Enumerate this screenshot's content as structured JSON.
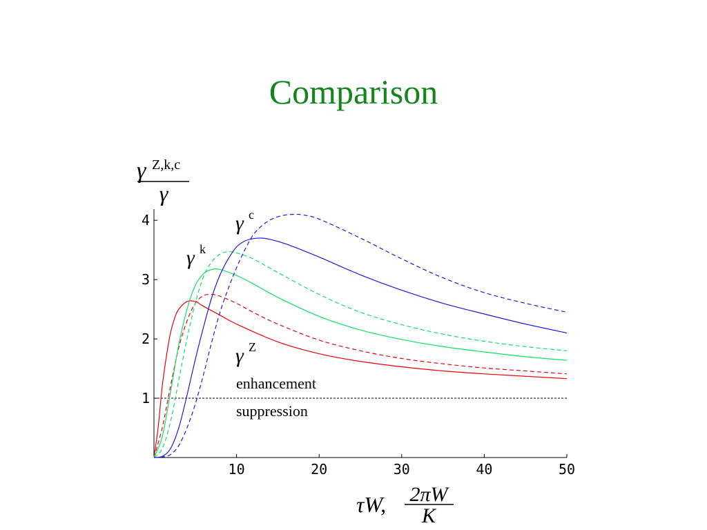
{
  "slide": {
    "title": "Comparison",
    "title_color": "#12851d"
  },
  "labels": {
    "y_gamma": "γ",
    "y_sup": "Z,k,c",
    "y_den": "γ",
    "x_prefix": "τW,",
    "x_num": "2πW",
    "x_den": "K",
    "gamma_c_base": "γ",
    "gamma_c_sup": "c",
    "gamma_k_base": "γ",
    "gamma_k_sup": "k",
    "gamma_z_base": "γ",
    "gamma_z_sup": "Z",
    "enhancement": "enhancement",
    "suppression": "suppression"
  },
  "chart_data": {
    "type": "line",
    "xlim": [
      0,
      50
    ],
    "ylim": [
      0,
      4.2
    ],
    "x_ticks": [
      "10",
      "20",
      "30",
      "40",
      "50"
    ],
    "y_ticks": [
      "1",
      "2",
      "3",
      "4"
    ],
    "reference_line": {
      "y": 1,
      "style": "dashed",
      "color": "#000000"
    },
    "series": [
      {
        "color": "#e8000b",
        "style": "solid",
        "points": [
          [
            0,
            0
          ],
          [
            0.5,
            0.5
          ],
          [
            1,
            1.2
          ],
          [
            1.5,
            1.7
          ],
          [
            2,
            2.1
          ],
          [
            2.5,
            2.35
          ],
          [
            3,
            2.5
          ],
          [
            4,
            2.63
          ],
          [
            5,
            2.63
          ],
          [
            6,
            2.55
          ],
          [
            8,
            2.4
          ],
          [
            10,
            2.25
          ],
          [
            15,
            1.95
          ],
          [
            20,
            1.75
          ],
          [
            25,
            1.62
          ],
          [
            30,
            1.53
          ],
          [
            35,
            1.46
          ],
          [
            40,
            1.41
          ],
          [
            45,
            1.37
          ],
          [
            50,
            1.33
          ]
        ]
      },
      {
        "color": "#e8000b",
        "style": "dashed",
        "points": [
          [
            0,
            0
          ],
          [
            1,
            0.5
          ],
          [
            2,
            1.2
          ],
          [
            3,
            1.85
          ],
          [
            4,
            2.3
          ],
          [
            5,
            2.6
          ],
          [
            6,
            2.73
          ],
          [
            7,
            2.75
          ],
          [
            8,
            2.72
          ],
          [
            10,
            2.6
          ],
          [
            12,
            2.45
          ],
          [
            15,
            2.25
          ],
          [
            20,
            1.98
          ],
          [
            25,
            1.8
          ],
          [
            30,
            1.67
          ],
          [
            35,
            1.58
          ],
          [
            40,
            1.51
          ],
          [
            45,
            1.46
          ],
          [
            50,
            1.41
          ]
        ]
      },
      {
        "color": "#10e060",
        "style": "solid",
        "points": [
          [
            0,
            0
          ],
          [
            1,
            0.35
          ],
          [
            2,
            1.1
          ],
          [
            3,
            1.9
          ],
          [
            4,
            2.5
          ],
          [
            5,
            2.9
          ],
          [
            6,
            3.1
          ],
          [
            7,
            3.17
          ],
          [
            8,
            3.17
          ],
          [
            10,
            3.07
          ],
          [
            12,
            2.93
          ],
          [
            15,
            2.7
          ],
          [
            20,
            2.38
          ],
          [
            25,
            2.15
          ],
          [
            30,
            1.99
          ],
          [
            35,
            1.87
          ],
          [
            40,
            1.78
          ],
          [
            45,
            1.7
          ],
          [
            50,
            1.64
          ]
        ]
      },
      {
        "color": "#10e060",
        "style": "dashed",
        "points": [
          [
            0,
            0
          ],
          [
            1,
            0.15
          ],
          [
            2,
            0.6
          ],
          [
            3,
            1.3
          ],
          [
            4,
            2.0
          ],
          [
            5,
            2.6
          ],
          [
            6,
            3.05
          ],
          [
            7,
            3.3
          ],
          [
            8,
            3.43
          ],
          [
            9,
            3.47
          ],
          [
            10,
            3.45
          ],
          [
            12,
            3.35
          ],
          [
            15,
            3.12
          ],
          [
            20,
            2.75
          ],
          [
            25,
            2.45
          ],
          [
            30,
            2.24
          ],
          [
            35,
            2.08
          ],
          [
            40,
            1.96
          ],
          [
            45,
            1.87
          ],
          [
            50,
            1.8
          ]
        ]
      },
      {
        "color": "#1a1ae6",
        "style": "solid",
        "points": [
          [
            0,
            0
          ],
          [
            1,
            0.02
          ],
          [
            2,
            0.15
          ],
          [
            3,
            0.5
          ],
          [
            4,
            1.05
          ],
          [
            5,
            1.65
          ],
          [
            6,
            2.2
          ],
          [
            7,
            2.7
          ],
          [
            8,
            3.08
          ],
          [
            9,
            3.35
          ],
          [
            10,
            3.55
          ],
          [
            11,
            3.65
          ],
          [
            12,
            3.69
          ],
          [
            13,
            3.7
          ],
          [
            14,
            3.68
          ],
          [
            16,
            3.6
          ],
          [
            20,
            3.38
          ],
          [
            25,
            3.08
          ],
          [
            30,
            2.82
          ],
          [
            35,
            2.6
          ],
          [
            40,
            2.42
          ],
          [
            45,
            2.25
          ],
          [
            50,
            2.1
          ]
        ]
      },
      {
        "color": "#1a1ae6",
        "style": "dashed",
        "points": [
          [
            0,
            0
          ],
          [
            1,
            0.01
          ],
          [
            2,
            0.05
          ],
          [
            3,
            0.2
          ],
          [
            4,
            0.5
          ],
          [
            5,
            0.9
          ],
          [
            6,
            1.4
          ],
          [
            7,
            1.95
          ],
          [
            8,
            2.45
          ],
          [
            9,
            2.85
          ],
          [
            10,
            3.2
          ],
          [
            11,
            3.5
          ],
          [
            12,
            3.75
          ],
          [
            13,
            3.9
          ],
          [
            14,
            4.0
          ],
          [
            15,
            4.06
          ],
          [
            16,
            4.09
          ],
          [
            17,
            4.1
          ],
          [
            18,
            4.09
          ],
          [
            20,
            4.02
          ],
          [
            25,
            3.7
          ],
          [
            30,
            3.35
          ],
          [
            35,
            3.03
          ],
          [
            40,
            2.78
          ],
          [
            45,
            2.6
          ],
          [
            50,
            2.45
          ]
        ]
      }
    ]
  }
}
